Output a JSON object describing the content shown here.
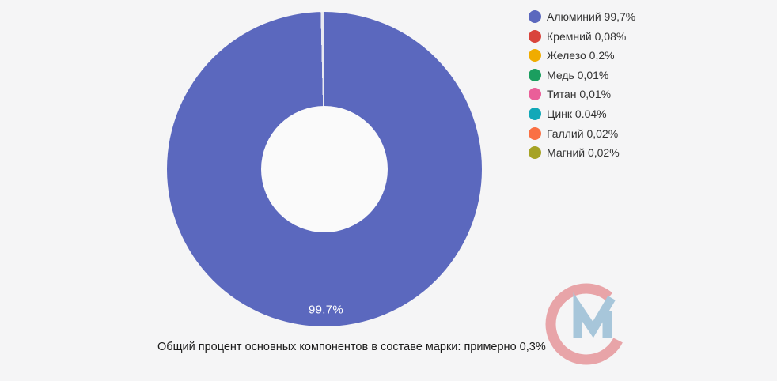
{
  "page": {
    "background": "#f5f5f6"
  },
  "chart_data": {
    "type": "pie",
    "style": "doughnut",
    "title": "",
    "categories": [
      "Алюминий",
      "Кремний",
      "Железо",
      "Медь",
      "Титан",
      "Цинк",
      "Галлий",
      "Магний"
    ],
    "values": [
      99.7,
      0.08,
      0.2,
      0.01,
      0.01,
      0.04,
      0.02,
      0.02
    ],
    "colors": [
      "#5b68be",
      "#d9443c",
      "#f0ac00",
      "#1b9e5f",
      "#ea5f99",
      "#12a8b8",
      "#fa7044",
      "#a6a325"
    ],
    "legend_labels": [
      "Алюминий 99,7%",
      "Кремний 0,08%",
      "Железо 0,2%",
      "Медь 0,01%",
      "Титан 0,01%",
      "Цинк 0.04%",
      "Галлий 0,02%",
      "Магний 0,02%"
    ],
    "legend_position": "right",
    "legend_text_color": "#333333",
    "slice_label": "99.7%",
    "slice_label_color": "#ffffff",
    "separator_color": "#e8e9f0",
    "hole_color": "#fafafa"
  },
  "caption": "Общий процент основных компонентов в составе марки: примерно 0,3%",
  "logo": {
    "name": "CM-watermark",
    "c_color": "#e8a4a8",
    "m_color": "#a7c6da"
  }
}
